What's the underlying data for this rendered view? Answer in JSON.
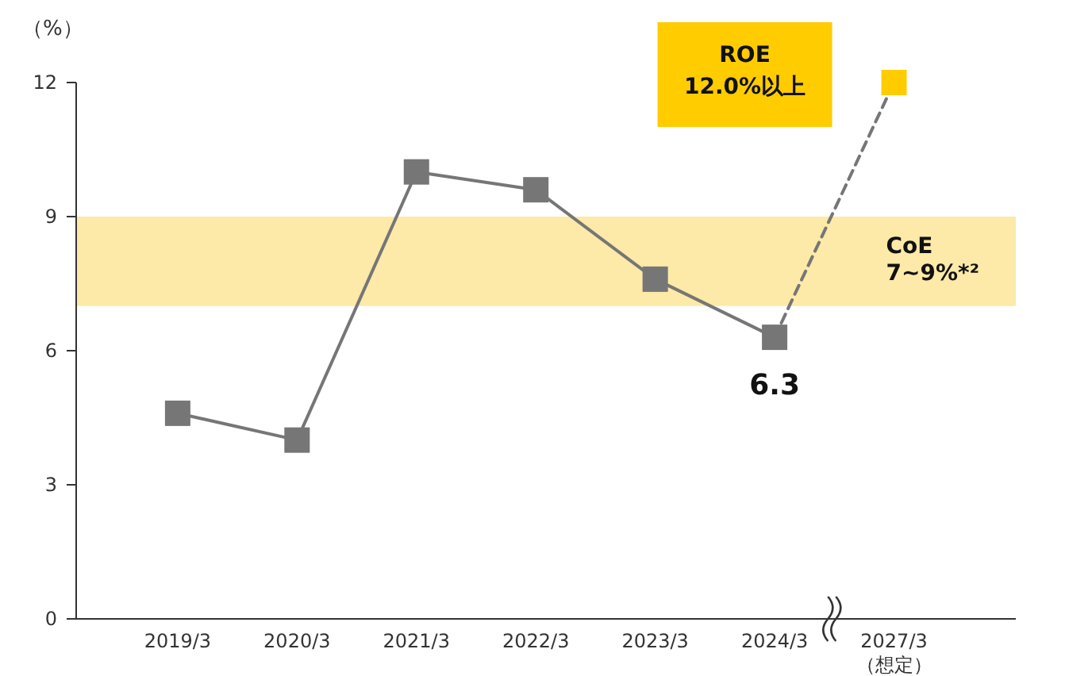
{
  "chart_data": {
    "type": "line",
    "ylabel": "（%）",
    "categories": [
      "2019/3",
      "2020/3",
      "2021/3",
      "2022/3",
      "2023/3",
      "2024/3",
      "2027/3\n（想定）"
    ],
    "series": [
      {
        "type": "line",
        "color": "#767676",
        "marker": "square",
        "line_style": "solid",
        "values": [
          4.6,
          4.0,
          10.0,
          9.6,
          7.6,
          6.3,
          null
        ],
        "value_labels": [
          null,
          null,
          null,
          null,
          null,
          "6.3",
          null
        ]
      },
      {
        "type": "line",
        "color": "#767676",
        "marker": "none",
        "line_style": "dashed",
        "values": [
          null,
          null,
          null,
          null,
          null,
          6.3,
          12.0
        ]
      },
      {
        "type": "scatter",
        "color": "#ffcc00",
        "marker": "square",
        "values": [
          null,
          null,
          null,
          null,
          null,
          null,
          12.0
        ]
      }
    ],
    "ylim": [
      0,
      12
    ],
    "yticks": [
      0,
      3,
      6,
      9,
      12
    ],
    "grid": false,
    "bands": [
      {
        "axis": "y",
        "from": 7,
        "to": 9,
        "label": "CoE\n7~9%*²",
        "color": "#fde9a8"
      }
    ],
    "annotations": [
      "ROE\n12.0%以上"
    ]
  }
}
